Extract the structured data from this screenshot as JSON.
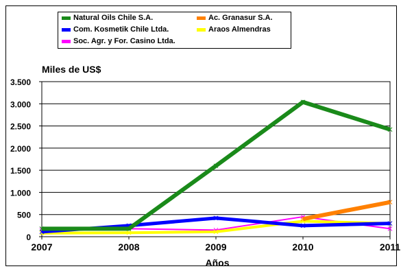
{
  "chart_data": {
    "type": "line",
    "title": "",
    "ylabel": "Miles de US$",
    "xlabel": "Años",
    "categories": [
      "2007",
      "2008",
      "2009",
      "2010",
      "2011"
    ],
    "ylim": [
      0,
      3500
    ],
    "yticks": [
      0,
      500,
      1000,
      1500,
      2000,
      2500,
      3000,
      3500
    ],
    "ytick_labels": [
      "0",
      "500",
      "1.000",
      "1.500",
      "2.000",
      "2.500",
      "3.000",
      "3.500"
    ],
    "grid": true,
    "legend_position": "top",
    "series": [
      {
        "name": "Natural Oils Chile S.A.",
        "color": "#1a8a1a",
        "values": [
          180,
          180,
          1600,
          3040,
          2420
        ]
      },
      {
        "name": "Ac. Granasur S.A.",
        "color": "#ff8000",
        "values": [
          null,
          null,
          null,
          400,
          780
        ]
      },
      {
        "name": "Com. Kosmetik Chile Ltda.",
        "color": "#0000ff",
        "values": [
          110,
          250,
          420,
          250,
          300
        ]
      },
      {
        "name": "Araos Almendras",
        "color": "#ffff00",
        "values": [
          80,
          90,
          110,
          350,
          300
        ]
      },
      {
        "name": "Soc. Agr. y For. Casino Ltda.",
        "color": "#ff00ff",
        "values": [
          150,
          180,
          150,
          450,
          180
        ]
      }
    ]
  }
}
